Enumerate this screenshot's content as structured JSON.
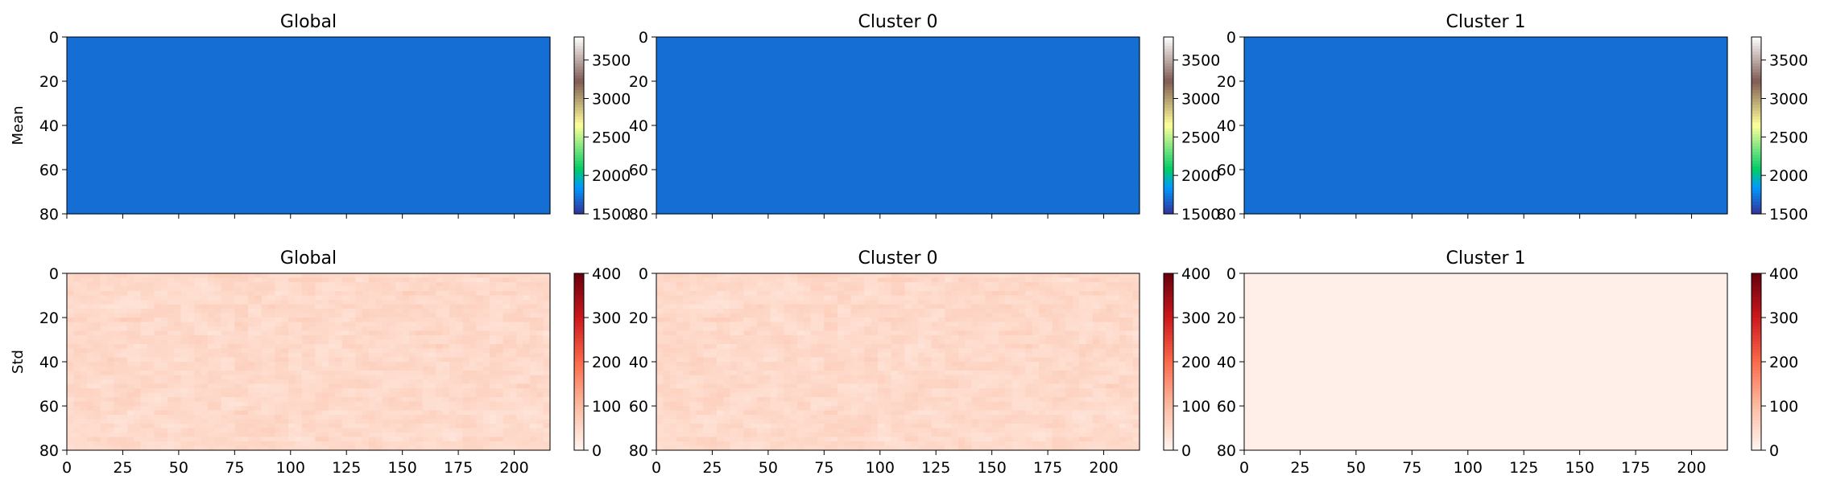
{
  "figure": {
    "row_labels": [
      "Mean",
      "Std"
    ]
  },
  "chart_data": [
    {
      "type": "heatmap",
      "row": 0,
      "col": 0,
      "title": "Global",
      "ylabel": "Mean",
      "xlim": [
        0,
        216
      ],
      "ylim": [
        80,
        0
      ],
      "xticks": [
        0,
        25,
        50,
        75,
        100,
        125,
        150,
        175,
        200
      ],
      "yticks": [
        0,
        20,
        40,
        60,
        80
      ],
      "show_xticklabels": false,
      "colorbar": {
        "cmap": "terrain",
        "vmin": 1500,
        "vmax": 3800,
        "ticks": [
          1500,
          2000,
          2500,
          3000,
          3500
        ]
      },
      "field": "mean_global"
    },
    {
      "type": "heatmap",
      "row": 0,
      "col": 1,
      "title": "Cluster 0",
      "ylabel": "",
      "xlim": [
        0,
        216
      ],
      "ylim": [
        80,
        0
      ],
      "xticks": [
        0,
        25,
        50,
        75,
        100,
        125,
        150,
        175,
        200
      ],
      "yticks": [
        0,
        20,
        40,
        60,
        80
      ],
      "show_xticklabels": false,
      "colorbar": {
        "cmap": "terrain",
        "vmin": 1500,
        "vmax": 3800,
        "ticks": [
          1500,
          2000,
          2500,
          3000,
          3500
        ]
      },
      "field": "mean_cluster0"
    },
    {
      "type": "heatmap",
      "row": 0,
      "col": 2,
      "title": "Cluster 1",
      "ylabel": "",
      "xlim": [
        0,
        216
      ],
      "ylim": [
        80,
        0
      ],
      "xticks": [
        0,
        25,
        50,
        75,
        100,
        125,
        150,
        175,
        200
      ],
      "yticks": [
        0,
        20,
        40,
        60,
        80
      ],
      "show_xticklabels": false,
      "colorbar": {
        "cmap": "terrain",
        "vmin": 1500,
        "vmax": 3800,
        "ticks": [
          1500,
          2000,
          2500,
          3000,
          3500
        ]
      },
      "field": "mean_cluster1"
    },
    {
      "type": "heatmap",
      "row": 1,
      "col": 0,
      "title": "Global",
      "ylabel": "Std",
      "xlim": [
        0,
        216
      ],
      "ylim": [
        80,
        0
      ],
      "xticks": [
        0,
        25,
        50,
        75,
        100,
        125,
        150,
        175,
        200
      ],
      "yticks": [
        0,
        20,
        40,
        60,
        80
      ],
      "show_xticklabels": true,
      "colorbar": {
        "cmap": "Reds",
        "vmin": 0,
        "vmax": 400,
        "ticks": [
          0,
          100,
          200,
          300,
          400
        ]
      },
      "field": "std_global"
    },
    {
      "type": "heatmap",
      "row": 1,
      "col": 1,
      "title": "Cluster 0",
      "ylabel": "",
      "xlim": [
        0,
        216
      ],
      "ylim": [
        80,
        0
      ],
      "xticks": [
        0,
        25,
        50,
        75,
        100,
        125,
        150,
        175,
        200
      ],
      "yticks": [
        0,
        20,
        40,
        60,
        80
      ],
      "show_xticklabels": true,
      "colorbar": {
        "cmap": "Reds",
        "vmin": 0,
        "vmax": 400,
        "ticks": [
          0,
          100,
          200,
          300,
          400
        ]
      },
      "field": "std_cluster0"
    },
    {
      "type": "heatmap",
      "row": 1,
      "col": 2,
      "title": "Cluster 1",
      "ylabel": "",
      "xlim": [
        0,
        216
      ],
      "ylim": [
        80,
        0
      ],
      "xticks": [
        0,
        25,
        50,
        75,
        100,
        125,
        150,
        175,
        200
      ],
      "yticks": [
        0,
        20,
        40,
        60,
        80
      ],
      "show_xticklabels": true,
      "colorbar": {
        "cmap": "Reds",
        "vmin": 0,
        "vmax": 400,
        "ticks": [
          0,
          100,
          200,
          300,
          400
        ]
      },
      "field": "std_cluster1"
    }
  ]
}
